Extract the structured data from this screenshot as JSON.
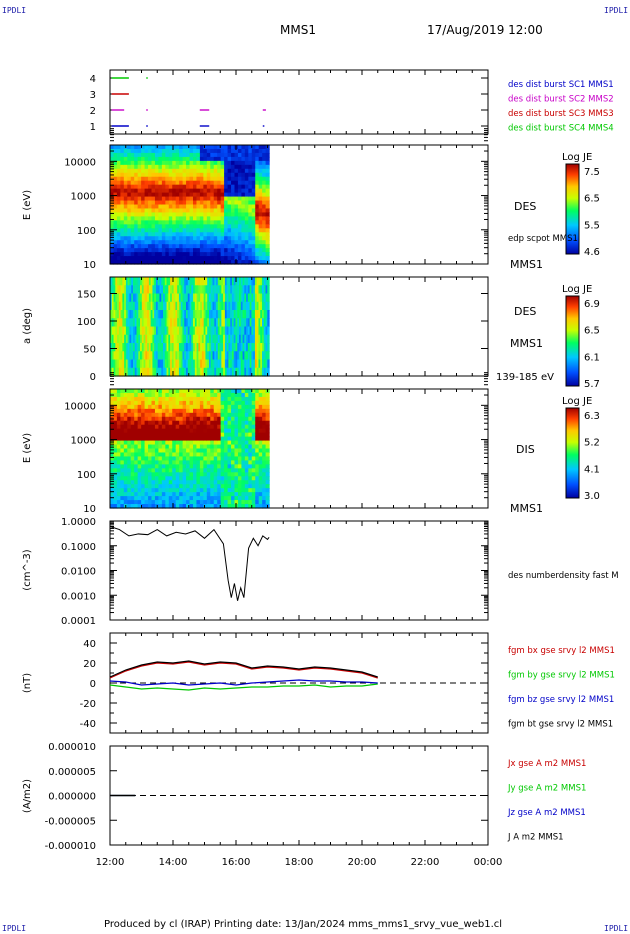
{
  "corner_label": "IPDLI",
  "header": {
    "spacecraft": "MMS1",
    "datetime": "17/Aug/2019 12:00"
  },
  "footer": {
    "text": "Produced by cl (IRAP)   Printing date: 13/Jan/2024   mms_mms1_srvy_vue_web1.cl"
  },
  "colors": {
    "mms1": "#0000c8",
    "mms2": "#c800c8",
    "mms3": "#c80000",
    "mms4": "#00c800",
    "bx": "#c80000",
    "by": "#00c800",
    "bz": "#0000c8",
    "bt": "#000000"
  },
  "chart_data": [
    {
      "type": "timeline",
      "panel": "burst",
      "yticks": [
        "1",
        "2",
        "3",
        "4"
      ],
      "legend": [
        {
          "label": "des dist burst SC1 MMS1",
          "color": "#0000c8"
        },
        {
          "label": "des dist burst SC2 MMS2",
          "color": "#c800c8"
        },
        {
          "label": "des dist burst SC3 MMS3",
          "color": "#c80000"
        },
        {
          "label": "des dist burst SC4 MMS4",
          "color": "#00c800"
        }
      ],
      "intervals": [
        {
          "sc": 4,
          "ranges": [
            [
              12.05,
              12.6
            ],
            [
              13.15,
              13.2
            ]
          ]
        },
        {
          "sc": 3,
          "ranges": [
            [
              12.05,
              12.6
            ]
          ]
        },
        {
          "sc": 2,
          "ranges": [
            [
              12.05,
              12.45
            ],
            [
              13.15,
              13.2
            ],
            [
              14.85,
              15.15
            ],
            [
              16.85,
              16.95
            ]
          ]
        },
        {
          "sc": 1,
          "ranges": [
            [
              12.05,
              12.6
            ],
            [
              13.15,
              13.2
            ],
            [
              14.85,
              15.15
            ],
            [
              16.85,
              16.9
            ]
          ]
        }
      ]
    },
    {
      "type": "heatmap",
      "panel": "des_energy",
      "ylabel": "E (eV)",
      "yscale": "log",
      "ylim": [
        10,
        30000
      ],
      "yticks": [
        "10",
        "100",
        "1000",
        "10000"
      ],
      "labels": [
        "DES",
        "edp scpot MMS1",
        "MMS1"
      ],
      "colorbar": {
        "title": "Log JE",
        "ticks": [
          "7.5",
          "6.5",
          "5.5",
          "4.6"
        ],
        "range": [
          4.6,
          7.6
        ]
      },
      "data_end": 17.05
    },
    {
      "type": "heatmap",
      "panel": "des_pitch",
      "ylabel": "a (deg)",
      "ylim": [
        0,
        180
      ],
      "yticks": [
        "0",
        "50",
        "100",
        "150"
      ],
      "labels": [
        "DES",
        "MMS1",
        "139-185 eV"
      ],
      "colorbar": {
        "title": "Log JE",
        "ticks": [
          "6.9",
          "6.5",
          "6.1",
          "5.7"
        ],
        "range": [
          5.7,
          7.0
        ]
      },
      "data_end": 17.05
    },
    {
      "type": "heatmap",
      "panel": "dis_energy",
      "ylabel": "E (eV)",
      "yscale": "log",
      "ylim": [
        10,
        30000
      ],
      "yticks": [
        "10",
        "100",
        "1000",
        "10000"
      ],
      "labels": [
        "DIS",
        "MMS1"
      ],
      "colorbar": {
        "title": "Log JE",
        "ticks": [
          "6.3",
          "5.2",
          "4.1",
          "3.0"
        ],
        "range": [
          3.0,
          6.4
        ]
      },
      "data_end": 17.05
    },
    {
      "type": "line",
      "panel": "density",
      "ylabel": "(cm^-3)",
      "yscale": "log",
      "ylim": [
        0.0001,
        1.0
      ],
      "yticks": [
        "1.0000",
        "0.1000",
        "0.0100",
        "0.0010",
        "0.0001"
      ],
      "legend": [
        {
          "label": "des numberdensity fast M",
          "color": "#000000"
        }
      ],
      "series": [
        {
          "x": [
            12.0,
            12.3,
            12.6,
            12.9,
            13.2,
            13.5,
            13.8,
            14.1,
            14.4,
            14.7,
            15.0,
            15.3,
            15.6,
            15.75,
            15.85,
            15.95,
            16.05,
            16.15,
            16.25,
            16.4,
            16.55,
            16.7,
            16.85,
            17.0,
            17.05
          ],
          "y": [
            0.6,
            0.45,
            0.25,
            0.3,
            0.28,
            0.45,
            0.25,
            0.35,
            0.3,
            0.4,
            0.2,
            0.45,
            0.12,
            0.004,
            0.0008,
            0.003,
            0.0006,
            0.002,
            0.0008,
            0.08,
            0.2,
            0.1,
            0.25,
            0.18,
            0.22
          ]
        }
      ]
    },
    {
      "type": "line",
      "panel": "b_field",
      "ylabel": "(nT)",
      "ylim": [
        -50,
        50
      ],
      "yticks": [
        "40",
        "20",
        "0",
        "-20",
        "-40"
      ],
      "series": [
        {
          "name": "fgm bx gse srvy l2 MMS1",
          "color": "#c80000",
          "x": [
            12.0,
            12.5,
            13.0,
            13.5,
            14.0,
            14.5,
            15.0,
            15.5,
            16.0,
            16.5,
            17.0,
            17.5,
            18.0,
            18.5,
            19.0,
            19.5,
            20.0,
            20.5
          ],
          "y": [
            5,
            12,
            17,
            20,
            19,
            21,
            18,
            20,
            19,
            14,
            16,
            15,
            13,
            15,
            14,
            12,
            10,
            5
          ]
        },
        {
          "name": "fgm by gse srvy l2 MMS1",
          "color": "#00c800",
          "x": [
            12.0,
            12.5,
            13.0,
            13.5,
            14.0,
            14.5,
            15.0,
            15.5,
            16.0,
            16.5,
            17.0,
            17.5,
            18.0,
            18.5,
            19.0,
            19.5,
            20.0,
            20.5
          ],
          "y": [
            -2,
            -4,
            -6,
            -5,
            -6,
            -7,
            -5,
            -6,
            -5,
            -4,
            -4,
            -3,
            -3,
            -2,
            -4,
            -3,
            -3,
            -1
          ]
        },
        {
          "name": "fgm bz gse srvy l2 MMS1",
          "color": "#0000c8",
          "x": [
            12.0,
            12.5,
            13.0,
            13.5,
            14.0,
            14.5,
            15.0,
            15.5,
            16.0,
            16.5,
            17.0,
            17.5,
            18.0,
            18.5,
            19.0,
            19.5,
            20.0,
            20.5
          ],
          "y": [
            2,
            1,
            -2,
            -1,
            0,
            -2,
            -1,
            0,
            -2,
            0,
            1,
            2,
            3,
            2,
            2,
            1,
            1,
            0
          ]
        },
        {
          "name": "fgm bt gse srvy l2 MMS1",
          "color": "#000000",
          "x": [
            12.0,
            12.5,
            13.0,
            13.5,
            14.0,
            14.5,
            15.0,
            15.5,
            16.0,
            16.5,
            17.0,
            17.5,
            18.0,
            18.5,
            19.0,
            19.5,
            20.0,
            20.5
          ],
          "y": [
            6,
            13,
            18,
            21,
            20,
            22,
            19,
            21,
            20,
            15,
            17,
            16,
            14,
            16,
            15,
            13,
            11,
            6
          ]
        }
      ]
    },
    {
      "type": "line",
      "panel": "current",
      "ylabel": "(A/m2)",
      "ylim": [
        -1e-05,
        1e-05
      ],
      "yticks": [
        "0.000010",
        "0.000005",
        "0.000000",
        "-0.000005",
        "-0.000010"
      ],
      "series": [
        {
          "name": "Jx gse A m2 MMS1",
          "color": "#c80000",
          "x": [
            12.0,
            12.8
          ],
          "y": [
            0,
            0
          ]
        },
        {
          "name": "Jy gse A m2 MMS1",
          "color": "#00c800",
          "x": [
            12.0,
            12.8
          ],
          "y": [
            0,
            0
          ]
        },
        {
          "name": "Jz gse A m2 MMS1",
          "color": "#0000c8",
          "x": [
            12.0,
            12.8
          ],
          "y": [
            0,
            0
          ]
        },
        {
          "name": "J A m2 MMS1",
          "color": "#000000",
          "x": [
            12.0,
            12.8
          ],
          "y": [
            0,
            0
          ]
        }
      ]
    }
  ],
  "xaxis": {
    "ticks": [
      "12:00",
      "14:00",
      "16:00",
      "18:00",
      "20:00",
      "22:00",
      "00:00"
    ],
    "xlim": [
      12,
      24
    ]
  }
}
